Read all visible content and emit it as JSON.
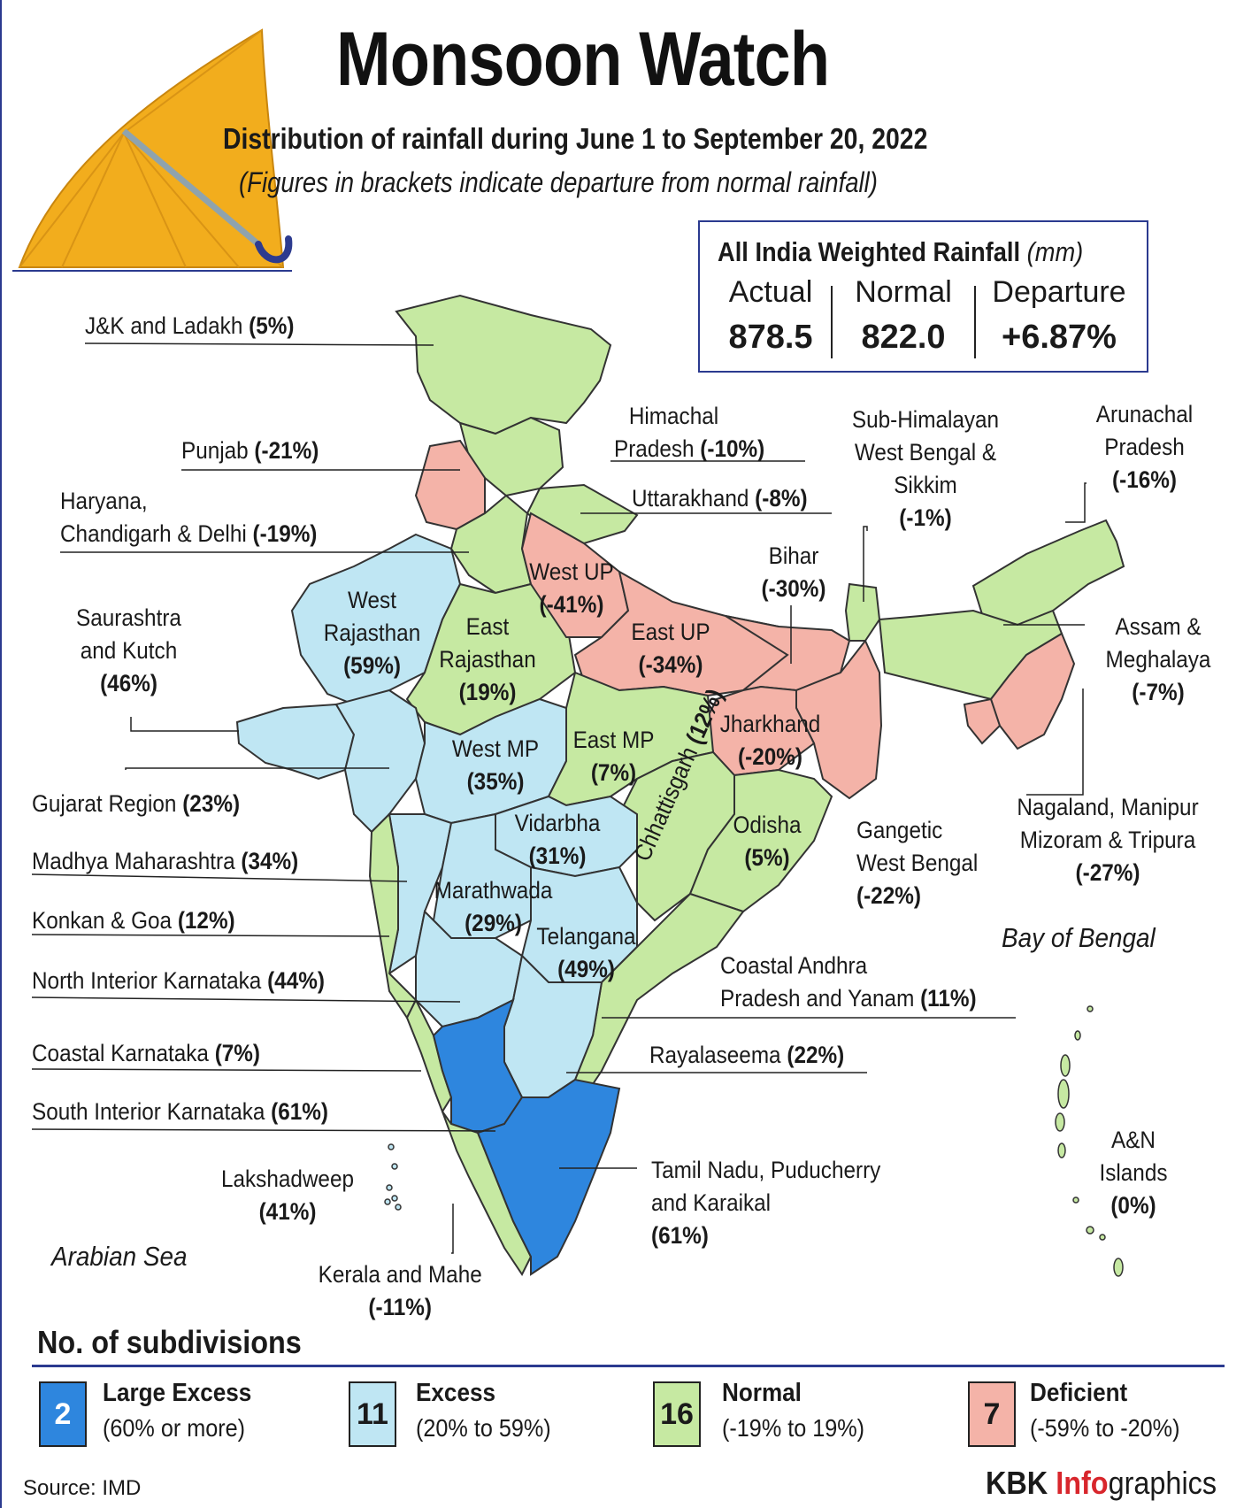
{
  "title": "Monsoon Watch",
  "subtitle": "Distribution of rainfall during June 1 to September 20, 2022",
  "note": "(Figures in brackets indicate departure from normal rainfall)",
  "rainfall_box": {
    "heading": "All India Weighted Rainfall",
    "unit": "(mm)",
    "actual_label": "Actual",
    "actual_value": "878.5",
    "normal_label": "Normal",
    "normal_value": "822.0",
    "departure_label": "Departure",
    "departure_value": "+6.87%"
  },
  "colors": {
    "large_excess": "#2e86de",
    "excess": "#bfe6f3",
    "normal": "#c6e9a2",
    "deficient": "#f4b3a8",
    "frame": "#2b3a8f",
    "brand_red": "#d8262c"
  },
  "regions": {
    "jk": {
      "name": "J&K and Ladakh",
      "dep": "(5%)"
    },
    "hp": {
      "name1": "Himachal",
      "name2": "Pradesh",
      "dep": "(-10%)"
    },
    "pun": {
      "name": "Punjab",
      "dep": "(-21%)"
    },
    "har": {
      "name1": "Haryana,",
      "name2": "Chandigarh & Delhi",
      "dep": "(-19%)"
    },
    "utk": {
      "name": "Uttarakhand",
      "dep": "(-8%)"
    },
    "shwb": {
      "name1": "Sub-Himalayan",
      "name2": "West Bengal &",
      "name3": "Sikkim",
      "dep": "(-1%)"
    },
    "arp": {
      "name1": "Arunachal",
      "name2": "Pradesh",
      "dep": "(-16%)"
    },
    "bih": {
      "name": "Bihar",
      "dep": "(-30%)"
    },
    "wup": {
      "name": "West UP",
      "dep": "(-41%)"
    },
    "eup": {
      "name": "East UP",
      "dep": "(-34%)"
    },
    "wraj": {
      "name1": "West",
      "name2": "Rajasthan",
      "dep": "(59%)"
    },
    "eraj": {
      "name1": "East",
      "name2": "Rajasthan",
      "dep": "(19%)"
    },
    "sk": {
      "name1": "Saurashtra",
      "name2": "and Kutch",
      "dep": "(46%)"
    },
    "am": {
      "name1": "Assam &",
      "name2": "Meghalaya",
      "dep": "(-7%)"
    },
    "jh": {
      "name": "Jharkhand",
      "dep": "(-20%)"
    },
    "wmp": {
      "name": "West MP",
      "dep": "(35%)"
    },
    "emp": {
      "name": "East MP",
      "dep": "(7%)"
    },
    "guj": {
      "name": "Gujarat Region",
      "dep": "(23%)"
    },
    "chh": {
      "name": "Chhattisgarh",
      "dep": "(12%)"
    },
    "vid": {
      "name": "Vidarbha",
      "dep": "(31%)"
    },
    "odi": {
      "name": "Odisha",
      "dep": "(5%)"
    },
    "gwb": {
      "name1": "Gangetic",
      "name2": "West Bengal",
      "dep": "(-22%)"
    },
    "nmmt": {
      "name1": "Nagaland, Manipur",
      "name2": "Mizoram & Tripura",
      "dep": "(-27%)"
    },
    "mmah": {
      "name": "Madhya Maharashtra",
      "dep": "(34%)"
    },
    "mar": {
      "name": "Marathwada",
      "dep": "(29%)"
    },
    "tel": {
      "name": "Telangana",
      "dep": "(49%)"
    },
    "kg": {
      "name": "Konkan & Goa",
      "dep": "(12%)"
    },
    "nik": {
      "name": "North Interior Karnataka",
      "dep": "(44%)"
    },
    "cap": {
      "name1": "Coastal Andhra",
      "name2": "Pradesh and Yanam",
      "dep": "(11%)"
    },
    "ck": {
      "name": "Coastal Karnataka",
      "dep": "(7%)"
    },
    "rs": {
      "name": "Rayalaseema",
      "dep": "(22%)"
    },
    "sik": {
      "name": "South Interior Karnataka",
      "dep": "(61%)"
    },
    "tn": {
      "name1": "Tamil Nadu, Puducherry",
      "name2": "and Karaikal",
      "dep": "(61%)"
    },
    "lak": {
      "name": "Lakshadweep",
      "dep": "(41%)"
    },
    "an": {
      "name1": "A&N",
      "name2": "Islands",
      "dep": "(0%)"
    },
    "ker": {
      "name": "Kerala and Mahe",
      "dep": "(-11%)"
    }
  },
  "seas": {
    "bay": "Bay of Bengal",
    "arabian": "Arabian Sea"
  },
  "legend": {
    "title": "No. of subdivisions",
    "items": [
      {
        "count": "2",
        "name": "Large Excess",
        "range": "(60% or more)"
      },
      {
        "count": "11",
        "name": "Excess",
        "range": "(20% to 59%)"
      },
      {
        "count": "16",
        "name": "Normal",
        "range": "(-19% to 19%)"
      },
      {
        "count": "7",
        "name": "Deficient",
        "range": "(-59% to -20%)"
      }
    ]
  },
  "source": "Source: IMD",
  "credit": {
    "part1": "KBK ",
    "part2": "Info",
    "part3": "graphics"
  }
}
